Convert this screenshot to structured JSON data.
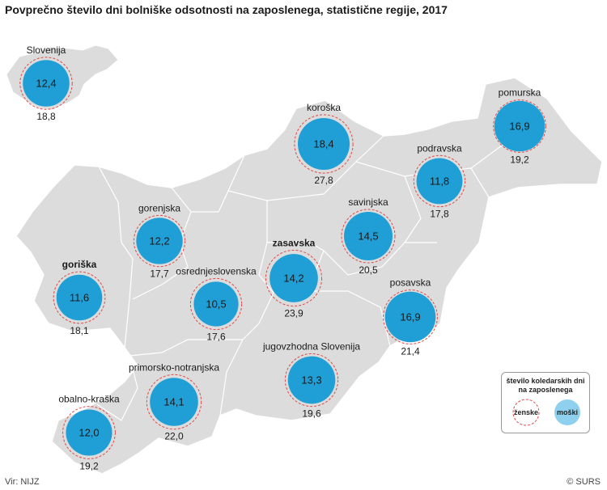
{
  "title": "Povprečno število dni bolniške odsotnosti na zaposlenega, statistične regije, 2017",
  "source": "Vir: NIJZ",
  "copyright": "© SURS",
  "colors": {
    "map_fill": "#dcdcdc",
    "map_border": "#ffffff",
    "men_circle": "#1f9fd6",
    "women_ring": "#e04a4a",
    "legend_men": "#8fd0ee"
  },
  "legend": {
    "title": "število koledarskih dni na zaposlenega",
    "women_label": "ženske",
    "men_label": "moški"
  },
  "regions": [
    {
      "name": "Slovenija",
      "men": "12,4",
      "women": "18,8"
    },
    {
      "name": "koroška",
      "men": "18,4",
      "women": "27,8"
    },
    {
      "name": "pomurska",
      "men": "16,9",
      "women": "19,2"
    },
    {
      "name": "podravska",
      "men": "11,8",
      "women": "17,8"
    },
    {
      "name": "gorenjska",
      "men": "12,2",
      "women": "17,7"
    },
    {
      "name": "savinjska",
      "men": "14,5",
      "women": "20,5"
    },
    {
      "name": "zasavska",
      "men": "14,2",
      "women": "23,9"
    },
    {
      "name": "goriška",
      "men": "11,6",
      "women": "18,1"
    },
    {
      "name": "osrednjeslovenska",
      "men": "10,5",
      "women": "17,6"
    },
    {
      "name": "posavska",
      "men": "16,9",
      "women": "21,4"
    },
    {
      "name": "jugovzhodna Slovenija",
      "men": "13,3",
      "women": "19,6"
    },
    {
      "name": "primorsko-notranjska",
      "men": "14,1",
      "women": "22,0"
    },
    {
      "name": "obalno-kraška",
      "men": "12,0",
      "women": "19,2"
    }
  ]
}
